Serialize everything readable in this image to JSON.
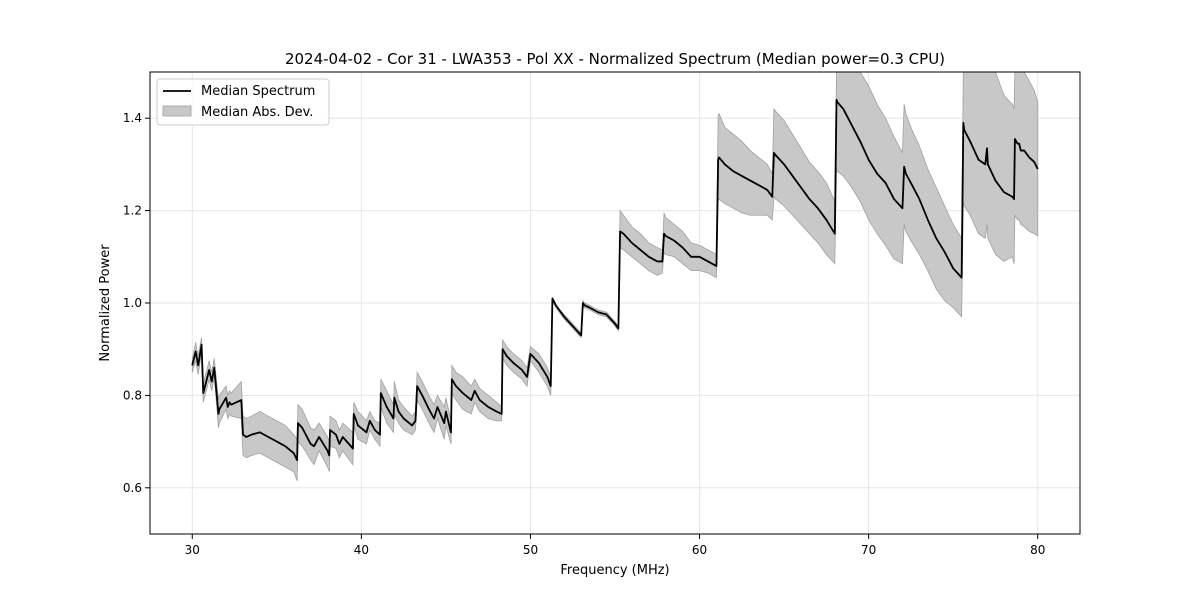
{
  "chart_data": {
    "type": "line",
    "title": "2024-04-02 - Cor 31 - LWA353 - Pol XX - Normalized Spectrum (Median power=0.3 CPU)",
    "xlabel": "Frequency (MHz)",
    "ylabel": "Normalized Power",
    "xlim": [
      27.5,
      82.5
    ],
    "ylim": [
      0.5,
      1.5
    ],
    "xticks": [
      30,
      40,
      50,
      60,
      70,
      80
    ],
    "yticks": [
      0.6,
      0.8,
      1.0,
      1.2,
      1.4
    ],
    "xtick_labels": [
      "30",
      "40",
      "50",
      "60",
      "70",
      "80"
    ],
    "ytick_labels": [
      "0.6",
      "0.8",
      "1.0",
      "1.2",
      "1.4"
    ],
    "grid": true,
    "legend": {
      "placement": "top-left",
      "entries": [
        "Median Spectrum",
        "Median Abs. Dev."
      ]
    },
    "colors": {
      "line": "#000000",
      "band_fill": "#c8c8c8",
      "band_edge": "#a0a0a0",
      "grid": "#e6e6e6"
    },
    "series": [
      {
        "name": "Median Spectrum",
        "x": [
          30.0,
          30.2,
          30.35,
          30.55,
          30.65,
          31.0,
          31.15,
          31.3,
          31.55,
          31.6,
          32.0,
          32.1,
          32.2,
          32.3,
          32.9,
          33.0,
          33.2,
          33.5,
          34.0,
          34.5,
          35.0,
          35.5,
          36.0,
          36.2,
          36.25,
          36.5,
          37.0,
          37.2,
          37.5,
          38.0,
          38.1,
          38.15,
          38.5,
          38.7,
          38.9,
          39.5,
          39.55,
          39.8,
          40.3,
          40.5,
          40.8,
          41.1,
          41.15,
          41.5,
          41.9,
          41.95,
          42.2,
          42.3,
          42.5,
          43.0,
          43.2,
          43.3,
          43.6,
          44.0,
          44.3,
          44.5,
          44.9,
          45.0,
          45.3,
          45.35,
          45.6,
          46.0,
          46.5,
          46.7,
          47.0,
          47.5,
          48.0,
          48.3,
          48.35,
          48.6,
          49.0,
          49.5,
          49.8,
          50.0,
          50.5,
          51.0,
          51.2,
          51.3,
          51.5,
          52.0,
          52.5,
          53.0,
          53.1,
          53.2,
          53.5,
          54.0,
          54.5,
          55.0,
          55.2,
          55.3,
          55.5,
          56.0,
          56.5,
          57.0,
          57.5,
          57.8,
          57.9,
          58.0,
          58.5,
          59.0,
          59.5,
          60.0,
          60.5,
          61.0,
          61.1,
          61.15,
          61.5,
          62.0,
          62.5,
          63.0,
          63.5,
          64.0,
          64.3,
          64.4,
          64.5,
          65.0,
          65.5,
          66.0,
          66.5,
          67.0,
          67.5,
          68.0,
          68.1,
          68.15,
          68.5,
          69.0,
          69.5,
          70.0,
          70.5,
          71.0,
          71.5,
          72.0,
          72.1,
          72.2,
          72.5,
          73.0,
          73.5,
          74.0,
          74.5,
          75.0,
          75.5,
          75.6,
          75.65,
          76.0,
          76.5,
          76.9,
          77.0,
          77.05,
          77.5,
          78.0,
          78.5,
          78.6,
          78.65,
          78.8,
          78.9,
          79.0,
          79.2,
          79.5,
          79.8,
          80.0
        ],
        "values": [
          0.865,
          0.895,
          0.865,
          0.91,
          0.805,
          0.855,
          0.83,
          0.86,
          0.76,
          0.77,
          0.795,
          0.775,
          0.785,
          0.78,
          0.79,
          0.715,
          0.71,
          0.715,
          0.72,
          0.71,
          0.7,
          0.69,
          0.675,
          0.66,
          0.74,
          0.73,
          0.695,
          0.69,
          0.71,
          0.68,
          0.67,
          0.725,
          0.715,
          0.695,
          0.71,
          0.685,
          0.76,
          0.735,
          0.72,
          0.745,
          0.725,
          0.715,
          0.805,
          0.775,
          0.75,
          0.795,
          0.765,
          0.76,
          0.75,
          0.735,
          0.745,
          0.82,
          0.8,
          0.77,
          0.75,
          0.775,
          0.74,
          0.765,
          0.72,
          0.835,
          0.82,
          0.805,
          0.79,
          0.81,
          0.79,
          0.775,
          0.765,
          0.76,
          0.9,
          0.885,
          0.87,
          0.855,
          0.84,
          0.89,
          0.87,
          0.84,
          0.82,
          1.01,
          0.995,
          0.97,
          0.95,
          0.93,
          1.0,
          0.995,
          0.99,
          0.98,
          0.975,
          0.955,
          0.945,
          1.155,
          1.15,
          1.13,
          1.115,
          1.1,
          1.09,
          1.09,
          1.15,
          1.145,
          1.135,
          1.12,
          1.1,
          1.1,
          1.09,
          1.08,
          1.31,
          1.315,
          1.3,
          1.285,
          1.275,
          1.265,
          1.255,
          1.245,
          1.23,
          1.325,
          1.32,
          1.3,
          1.275,
          1.25,
          1.225,
          1.205,
          1.18,
          1.15,
          1.44,
          1.435,
          1.42,
          1.385,
          1.35,
          1.31,
          1.28,
          1.26,
          1.225,
          1.205,
          1.295,
          1.28,
          1.26,
          1.225,
          1.18,
          1.14,
          1.11,
          1.075,
          1.055,
          1.39,
          1.375,
          1.35,
          1.31,
          1.3,
          1.335,
          1.3,
          1.265,
          1.24,
          1.23,
          1.225,
          1.355,
          1.345,
          1.345,
          1.33,
          1.33,
          1.315,
          1.305,
          1.29
        ]
      },
      {
        "name": "Median Abs. Dev.",
        "x": [
          30.0,
          30.2,
          30.35,
          30.55,
          30.65,
          31.0,
          31.15,
          31.3,
          31.55,
          31.6,
          32.0,
          32.1,
          32.2,
          32.3,
          32.9,
          33.0,
          33.2,
          33.5,
          34.0,
          34.5,
          35.0,
          35.5,
          36.0,
          36.2,
          36.25,
          36.5,
          37.0,
          37.2,
          37.5,
          38.0,
          38.1,
          38.15,
          38.5,
          38.7,
          38.9,
          39.5,
          39.55,
          39.8,
          40.3,
          40.5,
          40.8,
          41.1,
          41.15,
          41.5,
          41.9,
          41.95,
          42.2,
          42.3,
          42.5,
          43.0,
          43.2,
          43.3,
          43.6,
          44.0,
          44.3,
          44.5,
          44.9,
          45.0,
          45.3,
          45.35,
          45.6,
          46.0,
          46.5,
          46.7,
          47.0,
          47.5,
          48.0,
          48.3,
          48.35,
          48.6,
          49.0,
          49.5,
          49.8,
          50.0,
          50.5,
          51.0,
          51.2,
          51.3,
          51.5,
          52.0,
          52.5,
          53.0,
          53.1,
          53.2,
          53.5,
          54.0,
          54.5,
          55.0,
          55.2,
          55.3,
          55.5,
          56.0,
          56.5,
          57.0,
          57.5,
          57.8,
          57.9,
          58.0,
          58.5,
          59.0,
          59.5,
          60.0,
          60.5,
          61.0,
          61.1,
          61.15,
          61.5,
          62.0,
          62.5,
          63.0,
          63.5,
          64.0,
          64.3,
          64.4,
          64.5,
          65.0,
          65.5,
          66.0,
          66.5,
          67.0,
          67.5,
          68.0,
          68.1,
          68.15,
          68.5,
          69.0,
          69.5,
          70.0,
          70.5,
          71.0,
          71.5,
          72.0,
          72.1,
          72.2,
          72.5,
          73.0,
          73.5,
          74.0,
          74.5,
          75.0,
          75.5,
          75.6,
          75.65,
          76.0,
          76.5,
          76.9,
          77.0,
          77.05,
          77.5,
          78.0,
          78.5,
          78.6,
          78.65,
          78.8,
          78.9,
          79.0,
          79.2,
          79.5,
          79.8,
          80.0
        ],
        "upper": [
          0.88,
          0.915,
          0.885,
          0.925,
          0.825,
          0.875,
          0.85,
          0.88,
          0.79,
          0.8,
          0.82,
          0.8,
          0.81,
          0.805,
          0.83,
          0.755,
          0.75,
          0.755,
          0.765,
          0.755,
          0.745,
          0.735,
          0.715,
          0.705,
          0.78,
          0.77,
          0.73,
          0.725,
          0.74,
          0.71,
          0.7,
          0.755,
          0.745,
          0.725,
          0.74,
          0.72,
          0.785,
          0.765,
          0.745,
          0.765,
          0.745,
          0.74,
          0.835,
          0.81,
          0.78,
          0.83,
          0.79,
          0.785,
          0.775,
          0.755,
          0.765,
          0.85,
          0.83,
          0.8,
          0.78,
          0.8,
          0.775,
          0.795,
          0.745,
          0.865,
          0.85,
          0.84,
          0.82,
          0.835,
          0.815,
          0.8,
          0.785,
          0.775,
          0.92,
          0.905,
          0.89,
          0.875,
          0.86,
          0.905,
          0.89,
          0.86,
          0.84,
          1.01,
          0.995,
          0.975,
          0.955,
          0.935,
          1.005,
          1.0,
          0.995,
          0.985,
          0.98,
          0.96,
          0.95,
          1.2,
          1.19,
          1.165,
          1.15,
          1.13,
          1.12,
          1.115,
          1.195,
          1.185,
          1.17,
          1.155,
          1.13,
          1.125,
          1.115,
          1.105,
          1.405,
          1.41,
          1.38,
          1.365,
          1.35,
          1.33,
          1.315,
          1.3,
          1.28,
          1.42,
          1.415,
          1.395,
          1.365,
          1.335,
          1.305,
          1.285,
          1.26,
          1.22,
          1.5,
          1.5,
          1.5,
          1.5,
          1.5,
          1.47,
          1.43,
          1.4,
          1.36,
          1.325,
          1.43,
          1.41,
          1.38,
          1.34,
          1.29,
          1.25,
          1.21,
          1.17,
          1.14,
          1.5,
          1.5,
          1.5,
          1.5,
          1.5,
          1.5,
          1.5,
          1.5,
          1.45,
          1.43,
          1.42,
          1.5,
          1.5,
          1.5,
          1.5,
          1.5,
          1.48,
          1.46,
          1.435
        ],
        "lower": [
          0.85,
          0.875,
          0.845,
          0.895,
          0.785,
          0.835,
          0.81,
          0.84,
          0.73,
          0.74,
          0.77,
          0.75,
          0.76,
          0.755,
          0.75,
          0.67,
          0.665,
          0.67,
          0.675,
          0.665,
          0.655,
          0.645,
          0.635,
          0.615,
          0.7,
          0.69,
          0.66,
          0.65,
          0.68,
          0.645,
          0.635,
          0.69,
          0.685,
          0.665,
          0.68,
          0.65,
          0.735,
          0.705,
          0.695,
          0.725,
          0.705,
          0.69,
          0.775,
          0.74,
          0.72,
          0.76,
          0.74,
          0.735,
          0.725,
          0.715,
          0.725,
          0.79,
          0.77,
          0.74,
          0.72,
          0.75,
          0.705,
          0.735,
          0.695,
          0.805,
          0.79,
          0.77,
          0.76,
          0.785,
          0.765,
          0.75,
          0.745,
          0.745,
          0.88,
          0.865,
          0.85,
          0.835,
          0.82,
          0.875,
          0.85,
          0.82,
          0.8,
          1.005,
          0.99,
          0.965,
          0.945,
          0.925,
          0.995,
          0.99,
          0.985,
          0.975,
          0.97,
          0.95,
          0.94,
          1.12,
          1.115,
          1.1,
          1.085,
          1.07,
          1.06,
          1.065,
          1.11,
          1.105,
          1.1,
          1.085,
          1.07,
          1.07,
          1.065,
          1.055,
          1.22,
          1.225,
          1.215,
          1.205,
          1.195,
          1.19,
          1.19,
          1.19,
          1.18,
          1.23,
          1.225,
          1.21,
          1.19,
          1.17,
          1.15,
          1.13,
          1.105,
          1.085,
          1.29,
          1.285,
          1.275,
          1.25,
          1.22,
          1.18,
          1.15,
          1.125,
          1.095,
          1.085,
          1.17,
          1.155,
          1.135,
          1.105,
          1.07,
          1.03,
          1.005,
          0.99,
          0.97,
          1.22,
          1.21,
          1.19,
          1.15,
          1.14,
          1.17,
          1.14,
          1.105,
          1.09,
          1.1,
          1.085,
          1.19,
          1.18,
          1.18,
          1.17,
          1.165,
          1.155,
          1.15,
          1.145
        ]
      }
    ]
  }
}
